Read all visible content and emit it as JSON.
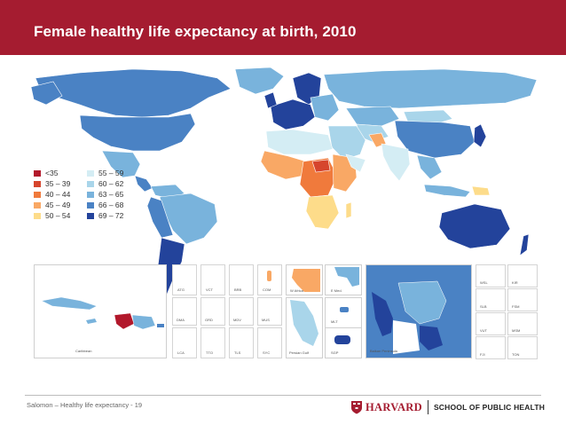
{
  "header": {
    "title": "Female healthy life expectancy at birth, 2010",
    "bg_color": "#a51c30"
  },
  "legend": {
    "items": [
      {
        "label": "<35",
        "color": "#b2182b"
      },
      {
        "label": "35 – 39",
        "color": "#d6452d"
      },
      {
        "label": "40 – 44",
        "color": "#f07a3c"
      },
      {
        "label": "45 – 49",
        "color": "#f9a865"
      },
      {
        "label": "50 – 54",
        "color": "#fddc8a"
      },
      {
        "label": "55 – 59",
        "color": "#d4edf4"
      },
      {
        "label": "60 – 62",
        "color": "#a9d5ea"
      },
      {
        "label": "63 – 65",
        "color": "#79b3dc"
      },
      {
        "label": "66 – 68",
        "color": "#4a82c4"
      },
      {
        "label": "69 – 72",
        "color": "#23439b"
      }
    ]
  },
  "insets": {
    "caribbean": {
      "label": "Caribbean"
    },
    "west_africa": {
      "label": "W Africa"
    },
    "e_med": {
      "label": "E Med."
    },
    "persian_gulf": {
      "label": "Persian Gulf"
    },
    "balkan": {
      "label": "Balkan Peninsula"
    },
    "small_tiles_left": [
      "ATG",
      "VCT",
      "BRB",
      "COM",
      "DMA",
      "GRD",
      "MDV",
      "MUS",
      "LCA",
      "TTO",
      "TLS",
      "SYC"
    ],
    "small_tiles_mid": [
      "MLT",
      "SGP"
    ],
    "small_tiles_right": [
      "WSL",
      "KIR",
      "SLB",
      "FSM",
      "VUT",
      "MSM",
      "FJI",
      "TON"
    ]
  },
  "footer": {
    "text": "Salomon – Healthy life expectancy - 19",
    "logo_word": "HARVARD",
    "logo_school": "SCHOOL OF PUBLIC HEALTH"
  }
}
